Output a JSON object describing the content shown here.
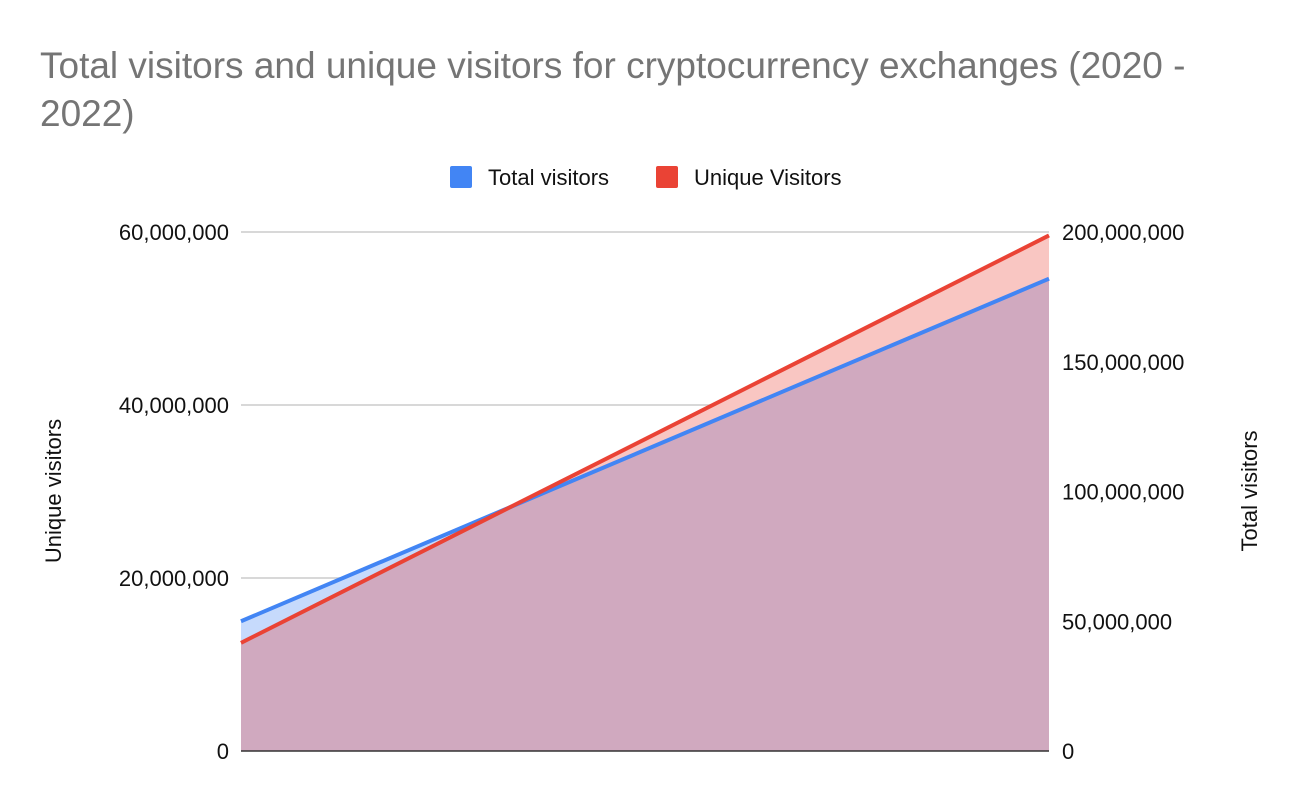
{
  "chart_data": {
    "type": "area",
    "title_lines": [
      "Total visitors and unique visitors for cryptocurrency exchanges (2020 -",
      "2022)"
    ],
    "legend": {
      "position": "top-center",
      "items": [
        {
          "label": "Total visitors",
          "color": "#4285f4"
        },
        {
          "label": "Unique Visitors",
          "color": "#ea4335"
        }
      ]
    },
    "x_points": 2,
    "series": [
      {
        "name": "Total visitors",
        "axis": "right",
        "color": "#4285f4",
        "fill": "#c6dafc",
        "values": [
          50000000,
          182000000
        ]
      },
      {
        "name": "Unique Visitors",
        "axis": "left",
        "color": "#ea4335",
        "fill": "#f9c6c2",
        "values": [
          12500000,
          59600000
        ]
      }
    ],
    "overlap_fill": "#d0a9bf",
    "left_axis": {
      "label": "Unique visitors",
      "ylim": [
        0,
        60000000
      ],
      "ticks": [
        "0",
        "20,000,000",
        "40,000,000",
        "60,000,000"
      ]
    },
    "right_axis": {
      "label": "Total visitors",
      "ylim": [
        0,
        200000000
      ],
      "ticks": [
        "0",
        "50,000,000",
        "100,000,000",
        "150,000,000",
        "200,000,000"
      ]
    },
    "grid": true
  }
}
